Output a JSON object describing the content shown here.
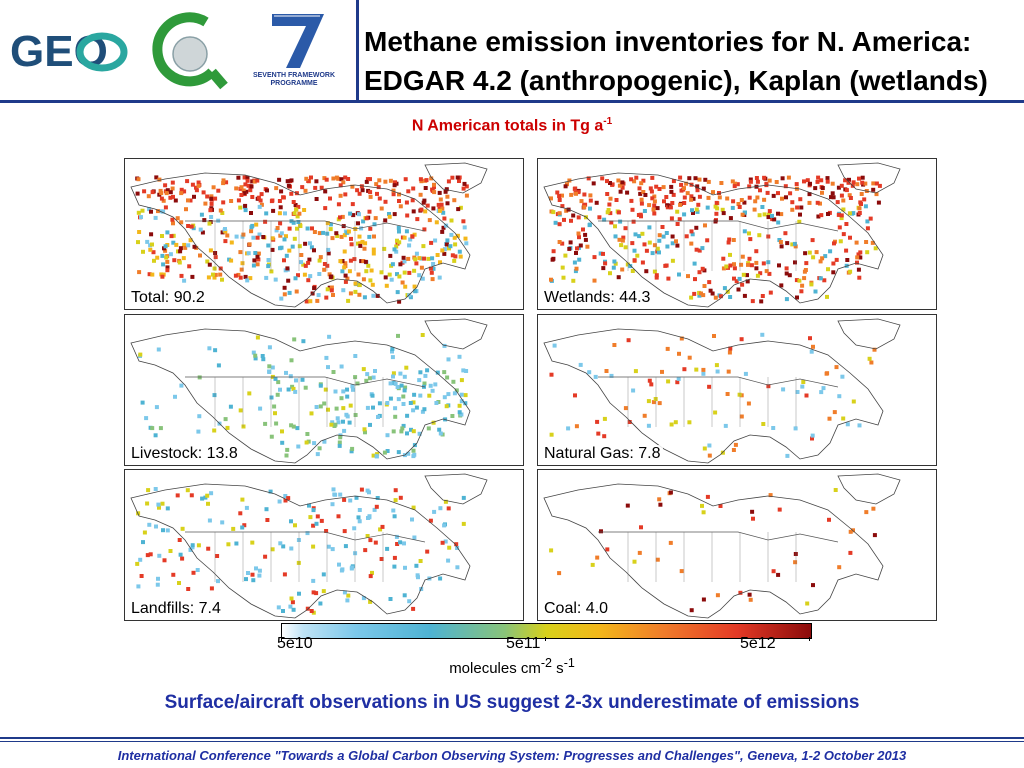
{
  "header": {
    "title_line1": "Methane emission inventories for N. America:",
    "title_line2": "EDGAR 4.2 (anthropogenic), Kaplan (wetlands)",
    "logos": {
      "geo": "GEO",
      "gcos": "gcos-logo",
      "fp7_line1": "SEVENTH FRAMEWORK",
      "fp7_line2": "PROGRAMME"
    }
  },
  "subtitle": {
    "main": "N American totals in Tg a",
    "sup": "-1"
  },
  "panels": [
    {
      "label": "Total: 90.2",
      "category": "Total",
      "value": 90.2
    },
    {
      "label": "Wetlands: 44.3",
      "category": "Wetlands",
      "value": 44.3
    },
    {
      "label": "Livestock: 13.8",
      "category": "Livestock",
      "value": 13.8
    },
    {
      "label": "Natural Gas: 7.8",
      "category": "Natural Gas",
      "value": 7.8
    },
    {
      "label": "Landfills: 7.4",
      "category": "Landfills",
      "value": 7.4
    },
    {
      "label": "Coal: 4.0",
      "category": "Coal",
      "value": 4.0
    }
  ],
  "colorbar": {
    "ticks": [
      "5e10",
      "5e11",
      "5e12"
    ],
    "units_main": "molecules cm",
    "units_sup1": "-2",
    "units_mid": " s",
    "units_sup2": "-1",
    "scale": "log",
    "colors": [
      "#ffffff",
      "#7cc8ea",
      "#4eb3d3",
      "#88c37a",
      "#d8d11b",
      "#f07d2a",
      "#e43a26",
      "#8b0b0b"
    ]
  },
  "note": "Surface/aircraft observations in US suggest 2-3x underestimate of emissions",
  "footer": "International Conference \"Towards a Global Carbon Observing System: Progresses and Challenges\", Geneva, 1-2 October 2013",
  "colors": {
    "accent": "#1f3a8a",
    "subtitle": "#cc0000",
    "note": "#1f2fa3"
  }
}
